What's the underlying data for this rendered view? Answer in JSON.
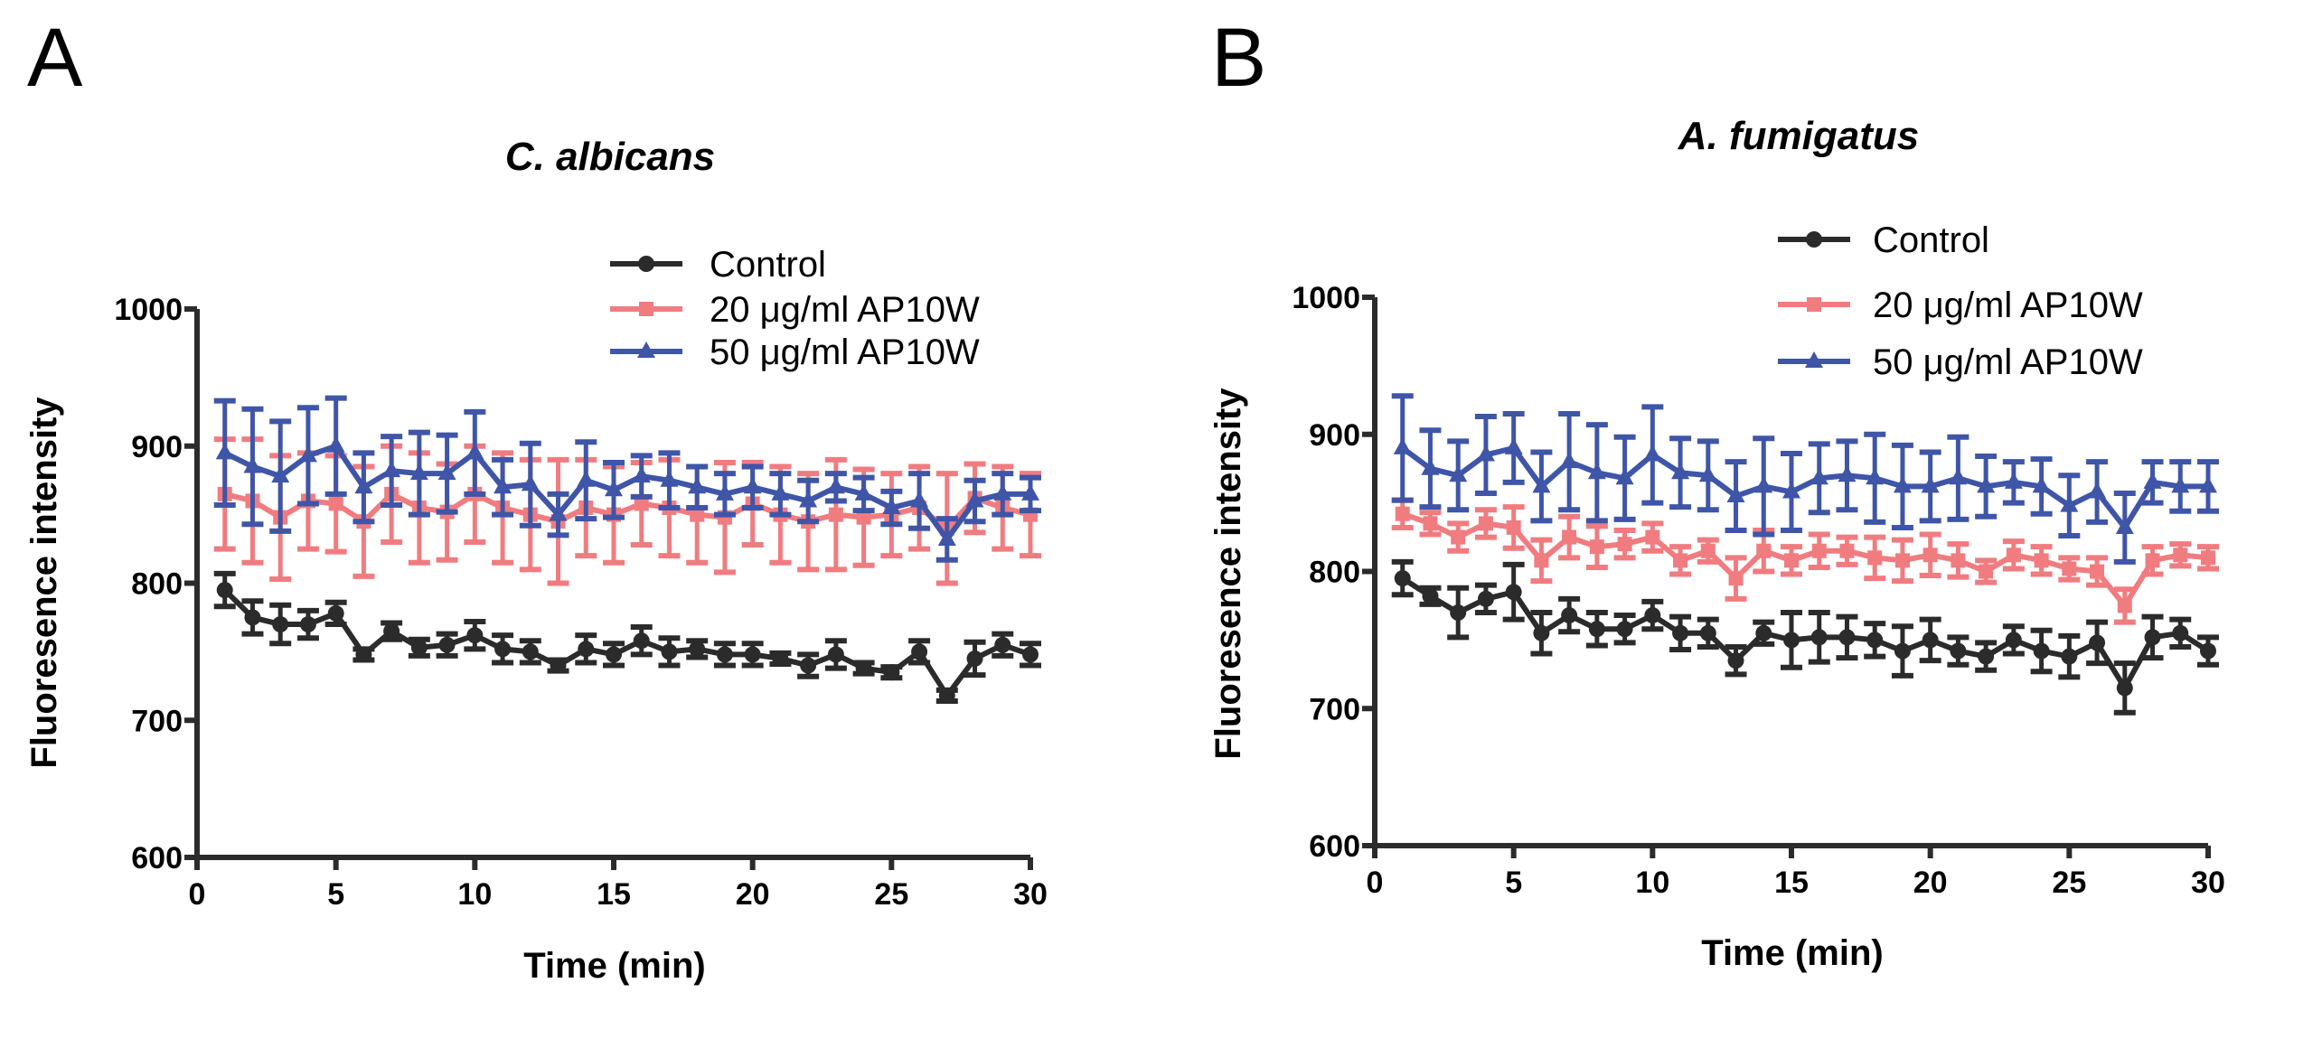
{
  "chart_data": [
    {
      "type": "line",
      "panel": "A",
      "title": "C. albicans",
      "xlabel": "Time (min)",
      "ylabel": "Fluoresence intensity",
      "xlim": [
        0,
        30
      ],
      "ylim": [
        600,
        1000
      ],
      "xticks": [
        0,
        5,
        10,
        15,
        20,
        25,
        30
      ],
      "yticks": [
        600,
        700,
        800,
        900,
        1000
      ],
      "legend_position": "top-right",
      "grid": false,
      "x": [
        1,
        2,
        3,
        4,
        5,
        6,
        7,
        8,
        9,
        10,
        11,
        12,
        13,
        14,
        15,
        16,
        17,
        18,
        19,
        20,
        21,
        22,
        23,
        24,
        25,
        26,
        27,
        28,
        29,
        30
      ],
      "series": [
        {
          "name": "Control",
          "color": "#2b2b2b",
          "marker": "circle",
          "values": [
            795,
            775,
            770,
            770,
            778,
            748,
            765,
            753,
            755,
            762,
            752,
            750,
            740,
            752,
            748,
            758,
            750,
            752,
            748,
            748,
            745,
            740,
            748,
            738,
            735,
            750,
            718,
            745,
            755,
            748
          ],
          "errors": [
            12,
            12,
            14,
            10,
            8,
            4,
            6,
            6,
            8,
            10,
            10,
            8,
            4,
            10,
            8,
            10,
            10,
            6,
            8,
            8,
            4,
            8,
            10,
            4,
            4,
            8,
            4,
            12,
            8,
            8
          ]
        },
        {
          "name": "20 μg/ml AP10W",
          "color": "#f07c80",
          "marker": "square",
          "values": [
            865,
            860,
            848,
            860,
            858,
            845,
            865,
            855,
            852,
            865,
            855,
            850,
            845,
            855,
            850,
            858,
            855,
            850,
            848,
            858,
            850,
            845,
            850,
            848,
            850,
            855,
            840,
            862,
            855,
            850
          ],
          "errors": [
            40,
            45,
            45,
            35,
            35,
            40,
            35,
            40,
            35,
            35,
            40,
            40,
            45,
            35,
            35,
            30,
            35,
            35,
            40,
            30,
            35,
            35,
            40,
            35,
            30,
            30,
            40,
            25,
            30,
            30
          ]
        },
        {
          "name": "50 μg/ml AP10W",
          "color": "#3f55a8",
          "marker": "triangle",
          "values": [
            895,
            885,
            878,
            893,
            900,
            870,
            882,
            880,
            880,
            895,
            870,
            872,
            850,
            875,
            868,
            878,
            875,
            870,
            865,
            870,
            865,
            860,
            870,
            865,
            855,
            860,
            832,
            860,
            865,
            865
          ],
          "errors": [
            38,
            42,
            40,
            35,
            35,
            25,
            25,
            30,
            28,
            30,
            20,
            30,
            15,
            28,
            20,
            15,
            20,
            15,
            15,
            15,
            15,
            15,
            10,
            12,
            12,
            20,
            15,
            15,
            15,
            12
          ]
        }
      ]
    },
    {
      "type": "line",
      "panel": "B",
      "title": "A. fumigatus",
      "xlabel": "Time (min)",
      "ylabel": "Fluoresence intensity",
      "xlim": [
        0,
        30
      ],
      "ylim": [
        600,
        1000
      ],
      "xticks": [
        0,
        5,
        10,
        15,
        20,
        25,
        30
      ],
      "yticks": [
        600,
        700,
        800,
        900,
        1000
      ],
      "legend_position": "top-right",
      "grid": false,
      "x": [
        1,
        2,
        3,
        4,
        5,
        6,
        7,
        8,
        9,
        10,
        11,
        12,
        13,
        14,
        15,
        16,
        17,
        18,
        19,
        20,
        21,
        22,
        23,
        24,
        25,
        26,
        27,
        28,
        29,
        30
      ],
      "series": [
        {
          "name": "Control",
          "color": "#2b2b2b",
          "marker": "circle",
          "values": [
            795,
            782,
            770,
            780,
            785,
            755,
            768,
            758,
            758,
            768,
            755,
            755,
            735,
            755,
            750,
            752,
            752,
            750,
            742,
            750,
            742,
            738,
            750,
            742,
            738,
            748,
            715,
            752,
            755,
            742
          ],
          "errors": [
            12,
            6,
            18,
            10,
            20,
            15,
            12,
            12,
            10,
            10,
            12,
            10,
            10,
            8,
            20,
            18,
            15,
            12,
            18,
            15,
            10,
            10,
            10,
            15,
            15,
            15,
            18,
            15,
            10,
            10
          ]
        },
        {
          "name": "20 μg/ml AP10W",
          "color": "#f07c80",
          "marker": "square",
          "values": [
            842,
            835,
            825,
            835,
            832,
            808,
            825,
            818,
            820,
            825,
            808,
            815,
            795,
            815,
            808,
            815,
            815,
            810,
            808,
            812,
            808,
            800,
            812,
            808,
            802,
            800,
            775,
            808,
            812,
            810
          ],
          "errors": [
            10,
            8,
            10,
            10,
            15,
            15,
            15,
            15,
            10,
            10,
            10,
            8,
            15,
            15,
            10,
            12,
            10,
            15,
            15,
            15,
            12,
            8,
            10,
            10,
            8,
            10,
            12,
            10,
            8,
            8
          ]
        },
        {
          "name": "50 μg/ml AP10W",
          "color": "#3f55a8",
          "marker": "triangle",
          "values": [
            890,
            875,
            870,
            885,
            890,
            862,
            880,
            872,
            868,
            885,
            872,
            870,
            855,
            862,
            858,
            868,
            870,
            868,
            862,
            862,
            868,
            862,
            865,
            862,
            848,
            858,
            832,
            865,
            862,
            862
          ],
          "errors": [
            38,
            28,
            25,
            28,
            25,
            25,
            35,
            35,
            30,
            35,
            25,
            25,
            25,
            35,
            28,
            25,
            25,
            32,
            30,
            25,
            30,
            22,
            15,
            20,
            22,
            22,
            25,
            15,
            18,
            18
          ]
        }
      ]
    }
  ]
}
